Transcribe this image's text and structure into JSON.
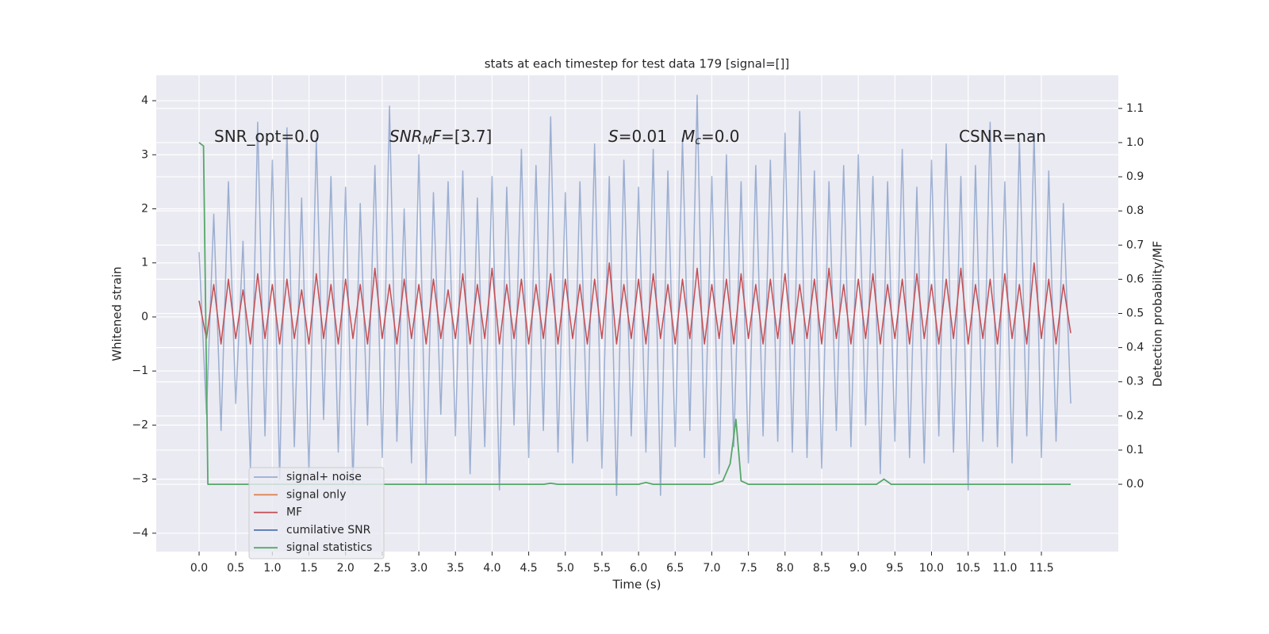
{
  "chart_data": {
    "type": "line",
    "title": "stats at each timestep for test data 179 [signal=[]]",
    "xlabel": "Time (s)",
    "ylabel": "Whitened strain",
    "y2label": "Detection probability/MF",
    "xlim": [
      -0.585,
      12.55
    ],
    "ylim": [
      -4.34,
      4.47
    ],
    "y2lim": [
      -0.197,
      1.197
    ],
    "grid": true,
    "legend": "lower left",
    "xticks": [
      {
        "value": 0,
        "label": "0.0"
      },
      {
        "value": 0.5,
        "label": "0.5"
      },
      {
        "value": 1,
        "label": "1.0"
      },
      {
        "value": 1.5,
        "label": "1.5"
      },
      {
        "value": 2,
        "label": "2.0"
      },
      {
        "value": 2.5,
        "label": "2.5"
      },
      {
        "value": 3,
        "label": "3.0"
      },
      {
        "value": 3.5,
        "label": "3.5"
      },
      {
        "value": 4,
        "label": "4.0"
      },
      {
        "value": 4.5,
        "label": "4.5"
      },
      {
        "value": 5,
        "label": "5.0"
      },
      {
        "value": 5.5,
        "label": "5.5"
      },
      {
        "value": 6,
        "label": "6.0"
      },
      {
        "value": 6.5,
        "label": "6.5"
      },
      {
        "value": 7,
        "label": "7.0"
      },
      {
        "value": 7.5,
        "label": "7.5"
      },
      {
        "value": 8,
        "label": "8.0"
      },
      {
        "value": 8.5,
        "label": "8.5"
      },
      {
        "value": 9,
        "label": "9.0"
      },
      {
        "value": 9.5,
        "label": "9.5"
      },
      {
        "value": 10,
        "label": "10.0"
      },
      {
        "value": 10.5,
        "label": "10.5"
      },
      {
        "value": 11,
        "label": "11.0"
      },
      {
        "value": 11.5,
        "label": "11.5"
      }
    ],
    "yticks": [
      {
        "value": -4,
        "label": "−4"
      },
      {
        "value": -3,
        "label": "−3"
      },
      {
        "value": -2,
        "label": "−2"
      },
      {
        "value": -1,
        "label": "−1"
      },
      0,
      1,
      2,
      3,
      4
    ],
    "y2ticks": [
      {
        "value": 0,
        "label": "0.0"
      },
      {
        "value": 0.1,
        "label": "0.1"
      },
      {
        "value": 0.2,
        "label": "0.2"
      },
      {
        "value": 0.3,
        "label": "0.3"
      },
      {
        "value": 0.4,
        "label": "0.4"
      },
      {
        "value": 0.5,
        "label": "0.5"
      },
      {
        "value": 0.6,
        "label": "0.6"
      },
      {
        "value": 0.7,
        "label": "0.7"
      },
      {
        "value": 0.8,
        "label": "0.8"
      },
      {
        "value": 0.9,
        "label": "0.9"
      },
      {
        "value": 1.0,
        "label": "1.0"
      },
      {
        "value": 1.1,
        "label": "1.1"
      }
    ],
    "annotations": [
      {
        "parts": [
          {
            "text": "SNR_opt=0.0",
            "style": "normal"
          }
        ]
      },
      {
        "parts": [
          {
            "text": "SNR",
            "style": "italic"
          },
          {
            "text": "M",
            "style": "italic-sub"
          },
          {
            "text": "F",
            "style": "italic"
          },
          {
            "text": "=[3.7]",
            "style": "normal"
          }
        ]
      },
      {
        "parts": [
          {
            "text": "S",
            "style": "italic"
          },
          {
            "text": "=0.01",
            "style": "normal"
          }
        ]
      },
      {
        "parts": [
          {
            "text": "M",
            "style": "italic"
          },
          {
            "text": "c",
            "style": "italic-sub"
          },
          {
            "text": "=0.0",
            "style": "normal"
          }
        ]
      },
      {
        "parts": [
          {
            "text": "CSNR=nan",
            "style": "normal"
          }
        ]
      }
    ],
    "series": [
      {
        "name": "signal+ noise",
        "color": "#4c72b0",
        "opacity": 0.5,
        "x": [
          0.0,
          0.1,
          0.2,
          0.3,
          0.4,
          0.5,
          0.6,
          0.7,
          0.8,
          0.9,
          1.0,
          1.1,
          1.2,
          1.3,
          1.4,
          1.5,
          1.6,
          1.7,
          1.8,
          1.9,
          2.0,
          2.1,
          2.2,
          2.3,
          2.4,
          2.5,
          2.6,
          2.7,
          2.8,
          2.9,
          3.0,
          3.1,
          3.2,
          3.3,
          3.4,
          3.5,
          3.6,
          3.7,
          3.8,
          3.9,
          4.0,
          4.1,
          4.2,
          4.3,
          4.4,
          4.5,
          4.6,
          4.7,
          4.8,
          4.9,
          5.0,
          5.1,
          5.2,
          5.3,
          5.4,
          5.5,
          5.6,
          5.7,
          5.8,
          5.9,
          6.0,
          6.1,
          6.2,
          6.3,
          6.4,
          6.5,
          6.6,
          6.7,
          6.8,
          6.9,
          7.0,
          7.1,
          7.2,
          7.3,
          7.4,
          7.5,
          7.6,
          7.7,
          7.8,
          7.9,
          8.0,
          8.1,
          8.2,
          8.3,
          8.4,
          8.5,
          8.6,
          8.7,
          8.8,
          8.9,
          9.0,
          9.1,
          9.2,
          9.3,
          9.4,
          9.5,
          9.6,
          9.7,
          9.8,
          9.9,
          10.0,
          10.1,
          10.2,
          10.3,
          10.4,
          10.5,
          10.6,
          10.7,
          10.8,
          10.9,
          11.0,
          11.1,
          11.2,
          11.3,
          11.4,
          11.5,
          11.6,
          11.7,
          11.8,
          11.9
        ],
        "values": [
          1.2,
          -1.8,
          1.9,
          -2.1,
          2.5,
          -1.6,
          1.4,
          -2.8,
          3.6,
          -2.2,
          2.9,
          -3.0,
          3.5,
          -2.4,
          2.2,
          -2.9,
          3.3,
          -1.9,
          2.6,
          -2.5,
          2.4,
          -3.1,
          2.1,
          -2.0,
          2.8,
          -2.6,
          3.9,
          -2.3,
          2.0,
          -2.7,
          3.0,
          -3.1,
          2.3,
          -1.8,
          2.5,
          -2.2,
          2.7,
          -2.9,
          2.2,
          -2.4,
          2.6,
          -3.2,
          2.4,
          -2.0,
          3.1,
          -2.6,
          2.8,
          -2.1,
          3.7,
          -2.5,
          2.3,
          -2.7,
          2.5,
          -2.3,
          3.2,
          -2.8,
          2.6,
          -3.3,
          2.9,
          -2.2,
          2.4,
          -2.5,
          3.1,
          -3.3,
          2.7,
          -2.4,
          3.3,
          -2.1,
          4.1,
          -2.6,
          2.6,
          -2.9,
          3.0,
          -2.4,
          2.5,
          -2.7,
          2.8,
          -2.2,
          2.9,
          -2.3,
          3.4,
          -2.5,
          3.8,
          -2.6,
          2.7,
          -2.8,
          2.5,
          -2.1,
          2.8,
          -2.4,
          3.0,
          -2.0,
          2.6,
          -2.9,
          2.5,
          -2.3,
          3.1,
          -2.6,
          2.4,
          -2.7,
          2.9,
          -2.2,
          3.2,
          -2.5,
          2.6,
          -3.2,
          2.8,
          -2.3,
          3.6,
          -2.4,
          2.5,
          -2.7,
          3.3,
          -2.2,
          3.4,
          -2.6,
          2.7,
          -2.3,
          2.1,
          -1.6
        ]
      },
      {
        "name": "signal only",
        "color": "#dd8452"
      },
      {
        "name": "MF",
        "color": "#c44e52",
        "opacity": 1,
        "x": [
          0.0,
          0.1,
          0.2,
          0.3,
          0.4,
          0.5,
          0.6,
          0.7,
          0.8,
          0.9,
          1.0,
          1.1,
          1.2,
          1.3,
          1.4,
          1.5,
          1.6,
          1.7,
          1.8,
          1.9,
          2.0,
          2.1,
          2.2,
          2.3,
          2.4,
          2.5,
          2.6,
          2.7,
          2.8,
          2.9,
          3.0,
          3.1,
          3.2,
          3.3,
          3.4,
          3.5,
          3.6,
          3.7,
          3.8,
          3.9,
          4.0,
          4.1,
          4.2,
          4.3,
          4.4,
          4.5,
          4.6,
          4.7,
          4.8,
          4.9,
          5.0,
          5.1,
          5.2,
          5.3,
          5.4,
          5.5,
          5.6,
          5.7,
          5.8,
          5.9,
          6.0,
          6.1,
          6.2,
          6.3,
          6.4,
          6.5,
          6.6,
          6.7,
          6.8,
          6.9,
          7.0,
          7.1,
          7.2,
          7.3,
          7.4,
          7.5,
          7.6,
          7.7,
          7.8,
          7.9,
          8.0,
          8.1,
          8.2,
          8.3,
          8.4,
          8.5,
          8.6,
          8.7,
          8.8,
          8.9,
          9.0,
          9.1,
          9.2,
          9.3,
          9.4,
          9.5,
          9.6,
          9.7,
          9.8,
          9.9,
          10.0,
          10.1,
          10.2,
          10.3,
          10.4,
          10.5,
          10.6,
          10.7,
          10.8,
          10.9,
          11.0,
          11.1,
          11.2,
          11.3,
          11.4,
          11.5,
          11.6,
          11.7,
          11.8,
          11.9
        ],
        "values": [
          0.3,
          -0.4,
          0.6,
          -0.5,
          0.7,
          -0.4,
          0.5,
          -0.5,
          0.8,
          -0.4,
          0.6,
          -0.5,
          0.7,
          -0.4,
          0.5,
          -0.5,
          0.8,
          -0.4,
          0.6,
          -0.5,
          0.7,
          -0.4,
          0.6,
          -0.5,
          0.9,
          -0.4,
          0.6,
          -0.5,
          0.7,
          -0.4,
          0.6,
          -0.5,
          0.7,
          -0.4,
          0.5,
          -0.4,
          0.8,
          -0.5,
          0.6,
          -0.4,
          0.9,
          -0.5,
          0.6,
          -0.4,
          0.7,
          -0.5,
          0.6,
          -0.4,
          0.8,
          -0.5,
          0.7,
          -0.4,
          0.6,
          -0.5,
          0.7,
          -0.4,
          1.0,
          -0.5,
          0.6,
          -0.4,
          0.7,
          -0.5,
          0.8,
          -0.4,
          0.6,
          -0.5,
          0.7,
          -0.4,
          0.9,
          -0.5,
          0.6,
          -0.4,
          0.7,
          -0.5,
          0.8,
          -0.4,
          0.6,
          -0.5,
          0.7,
          -0.4,
          0.8,
          -0.5,
          0.6,
          -0.4,
          0.7,
          -0.5,
          0.9,
          -0.4,
          0.6,
          -0.5,
          0.7,
          -0.4,
          0.8,
          -0.5,
          0.6,
          -0.4,
          0.7,
          -0.5,
          0.8,
          -0.4,
          0.6,
          -0.5,
          0.7,
          -0.4,
          0.9,
          -0.5,
          0.6,
          -0.4,
          0.7,
          -0.5,
          0.8,
          -0.4,
          0.6,
          -0.5,
          1.0,
          -0.4,
          0.7,
          -0.5,
          0.6,
          -0.3
        ]
      },
      {
        "name": "cumilative SNR",
        "color": "#4c72b0"
      },
      {
        "name": "signal statistics",
        "color": "#55a868",
        "opacity": 1,
        "axis": "y2",
        "x": [
          0.0,
          0.06,
          0.12,
          4.7,
          4.8,
          4.9,
          6.0,
          6.1,
          6.2,
          7.0,
          7.15,
          7.25,
          7.33,
          7.4,
          7.5,
          9.25,
          9.35,
          9.45,
          11.9
        ],
        "values": [
          1.0,
          0.99,
          0.0,
          0.0,
          0.003,
          0.0,
          0.0,
          0.005,
          0.0,
          0.0,
          0.01,
          0.06,
          0.19,
          0.01,
          0.0,
          0.0,
          0.015,
          0.0,
          0.0
        ]
      }
    ]
  }
}
